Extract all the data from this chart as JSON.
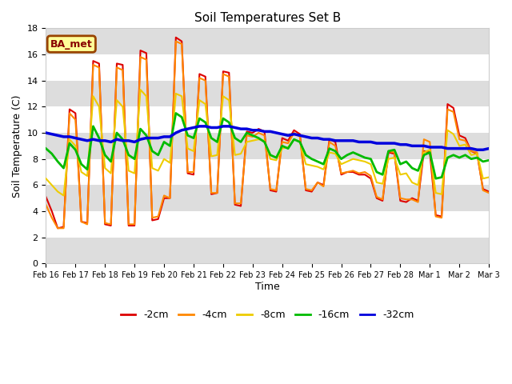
{
  "title": "Soil Temperatures Set B",
  "xlabel": "Time",
  "ylabel": "Soil Temperature (C)",
  "ylim": [
    0,
    18
  ],
  "fig_facecolor": "#ffffff",
  "plot_bg_color": "#ffffff",
  "annotation_text": "BA_met",
  "annotation_bg": "#ffff99",
  "annotation_border": "#994400",
  "annotation_text_color": "#880000",
  "legend_labels": [
    "-2cm",
    "-4cm",
    "-8cm",
    "-16cm",
    "-32cm"
  ],
  "line_colors": [
    "#dd0000",
    "#ff8800",
    "#eecc00",
    "#00bb00",
    "#0000dd"
  ],
  "line_widths": [
    1.5,
    1.5,
    1.5,
    2.0,
    2.5
  ],
  "x_tick_labels": [
    "Feb 16",
    "Feb 17",
    "Feb 18",
    "Feb 19",
    "Feb 20",
    "Feb 21",
    "Feb 22",
    "Feb 23",
    "Feb 24",
    "Feb 25",
    "Feb 26",
    "Feb 27",
    "Feb 28",
    "Mar 1",
    "Mar 2",
    "Mar 3"
  ],
  "band_ranges": [
    [
      0,
      2
    ],
    [
      4,
      6
    ],
    [
      8,
      10
    ],
    [
      12,
      14
    ],
    [
      16,
      18
    ]
  ],
  "band_color": "#dddddd",
  "series_2cm": [
    5.1,
    4.0,
    2.7,
    2.8,
    11.8,
    11.5,
    3.2,
    3.1,
    15.5,
    15.3,
    3.0,
    2.9,
    15.3,
    15.2,
    2.9,
    2.9,
    16.3,
    16.1,
    3.3,
    3.4,
    5.0,
    5.0,
    17.3,
    17.0,
    6.9,
    6.8,
    14.5,
    14.3,
    5.3,
    5.4,
    14.7,
    14.6,
    4.5,
    4.4,
    10.1,
    10.0,
    10.3,
    10.1,
    5.6,
    5.5,
    9.6,
    9.4,
    10.2,
    9.9,
    5.6,
    5.5,
    6.2,
    6.0,
    9.5,
    9.3,
    6.8,
    7.0,
    7.0,
    6.8,
    6.8,
    6.5,
    5.0,
    4.8,
    8.5,
    8.4,
    4.8,
    4.7,
    5.0,
    4.8,
    8.6,
    8.5,
    3.7,
    3.6,
    12.2,
    11.9,
    9.8,
    9.6,
    8.6,
    8.4,
    5.7,
    5.5
  ],
  "series_4cm": [
    4.5,
    3.5,
    2.7,
    2.7,
    11.5,
    11.0,
    3.2,
    3.0,
    15.2,
    15.0,
    3.1,
    3.0,
    15.0,
    14.8,
    3.0,
    3.0,
    15.8,
    15.6,
    3.5,
    3.6,
    5.2,
    5.0,
    17.0,
    16.8,
    7.0,
    7.0,
    14.2,
    14.0,
    5.4,
    5.4,
    14.5,
    14.3,
    4.6,
    4.6,
    9.8,
    9.7,
    10.0,
    9.8,
    5.7,
    5.6,
    9.3,
    9.2,
    10.0,
    9.7,
    5.7,
    5.6,
    6.2,
    5.9,
    9.3,
    9.0,
    6.9,
    7.0,
    7.1,
    6.9,
    7.0,
    6.7,
    5.1,
    4.9,
    8.6,
    8.5,
    5.0,
    4.9,
    4.9,
    4.7,
    9.5,
    9.3,
    3.6,
    3.5,
    11.8,
    11.6,
    9.5,
    9.4,
    8.6,
    8.5,
    5.6,
    5.4
  ],
  "series_8cm": [
    6.5,
    6.0,
    5.5,
    5.2,
    9.5,
    9.0,
    7.0,
    6.7,
    12.8,
    12.0,
    7.3,
    6.9,
    12.5,
    12.0,
    7.1,
    6.9,
    13.3,
    12.8,
    7.3,
    7.1,
    8.0,
    7.7,
    13.0,
    12.8,
    8.8,
    8.6,
    12.5,
    12.2,
    8.2,
    8.3,
    12.8,
    12.5,
    8.3,
    8.4,
    9.3,
    9.4,
    9.5,
    9.4,
    8.0,
    7.9,
    8.8,
    8.9,
    9.5,
    9.3,
    7.6,
    7.5,
    7.4,
    7.2,
    8.5,
    8.4,
    7.6,
    7.8,
    8.0,
    7.9,
    7.8,
    7.6,
    6.2,
    6.1,
    8.0,
    8.1,
    6.8,
    6.9,
    6.2,
    6.0,
    8.5,
    8.7,
    5.4,
    5.3,
    10.2,
    9.9,
    9.0,
    9.1,
    8.3,
    8.4,
    6.5,
    6.6
  ],
  "series_16cm": [
    8.8,
    8.4,
    7.8,
    7.3,
    9.2,
    8.7,
    7.6,
    7.2,
    10.5,
    9.6,
    8.3,
    7.8,
    10.0,
    9.5,
    8.3,
    8.0,
    10.3,
    9.8,
    8.6,
    8.3,
    9.3,
    9.0,
    11.5,
    11.2,
    9.8,
    9.6,
    11.1,
    10.8,
    9.6,
    9.3,
    11.1,
    10.8,
    9.6,
    9.3,
    10.0,
    9.8,
    9.6,
    9.3,
    8.3,
    8.1,
    9.0,
    8.8,
    9.5,
    9.3,
    8.3,
    8.0,
    7.8,
    7.6,
    8.8,
    8.6,
    8.0,
    8.3,
    8.5,
    8.3,
    8.1,
    8.0,
    7.0,
    6.8,
    8.6,
    8.7,
    7.6,
    7.8,
    7.3,
    7.1,
    8.3,
    8.5,
    6.5,
    6.6,
    8.1,
    8.3,
    8.1,
    8.3,
    8.0,
    8.1,
    7.8,
    7.9
  ],
  "series_32cm": [
    10.0,
    9.9,
    9.8,
    9.7,
    9.7,
    9.6,
    9.5,
    9.4,
    9.5,
    9.4,
    9.4,
    9.3,
    9.5,
    9.4,
    9.4,
    9.3,
    9.5,
    9.6,
    9.6,
    9.6,
    9.7,
    9.7,
    10.0,
    10.2,
    10.3,
    10.4,
    10.5,
    10.5,
    10.4,
    10.4,
    10.5,
    10.5,
    10.4,
    10.3,
    10.3,
    10.2,
    10.2,
    10.1,
    10.1,
    10.0,
    9.9,
    9.8,
    9.9,
    9.8,
    9.7,
    9.6,
    9.6,
    9.5,
    9.5,
    9.4,
    9.4,
    9.4,
    9.4,
    9.3,
    9.3,
    9.3,
    9.2,
    9.2,
    9.2,
    9.2,
    9.1,
    9.1,
    9.0,
    9.0,
    9.0,
    8.9,
    8.9,
    8.9,
    8.8,
    8.8,
    8.8,
    8.8,
    8.8,
    8.7,
    8.7,
    8.8
  ]
}
